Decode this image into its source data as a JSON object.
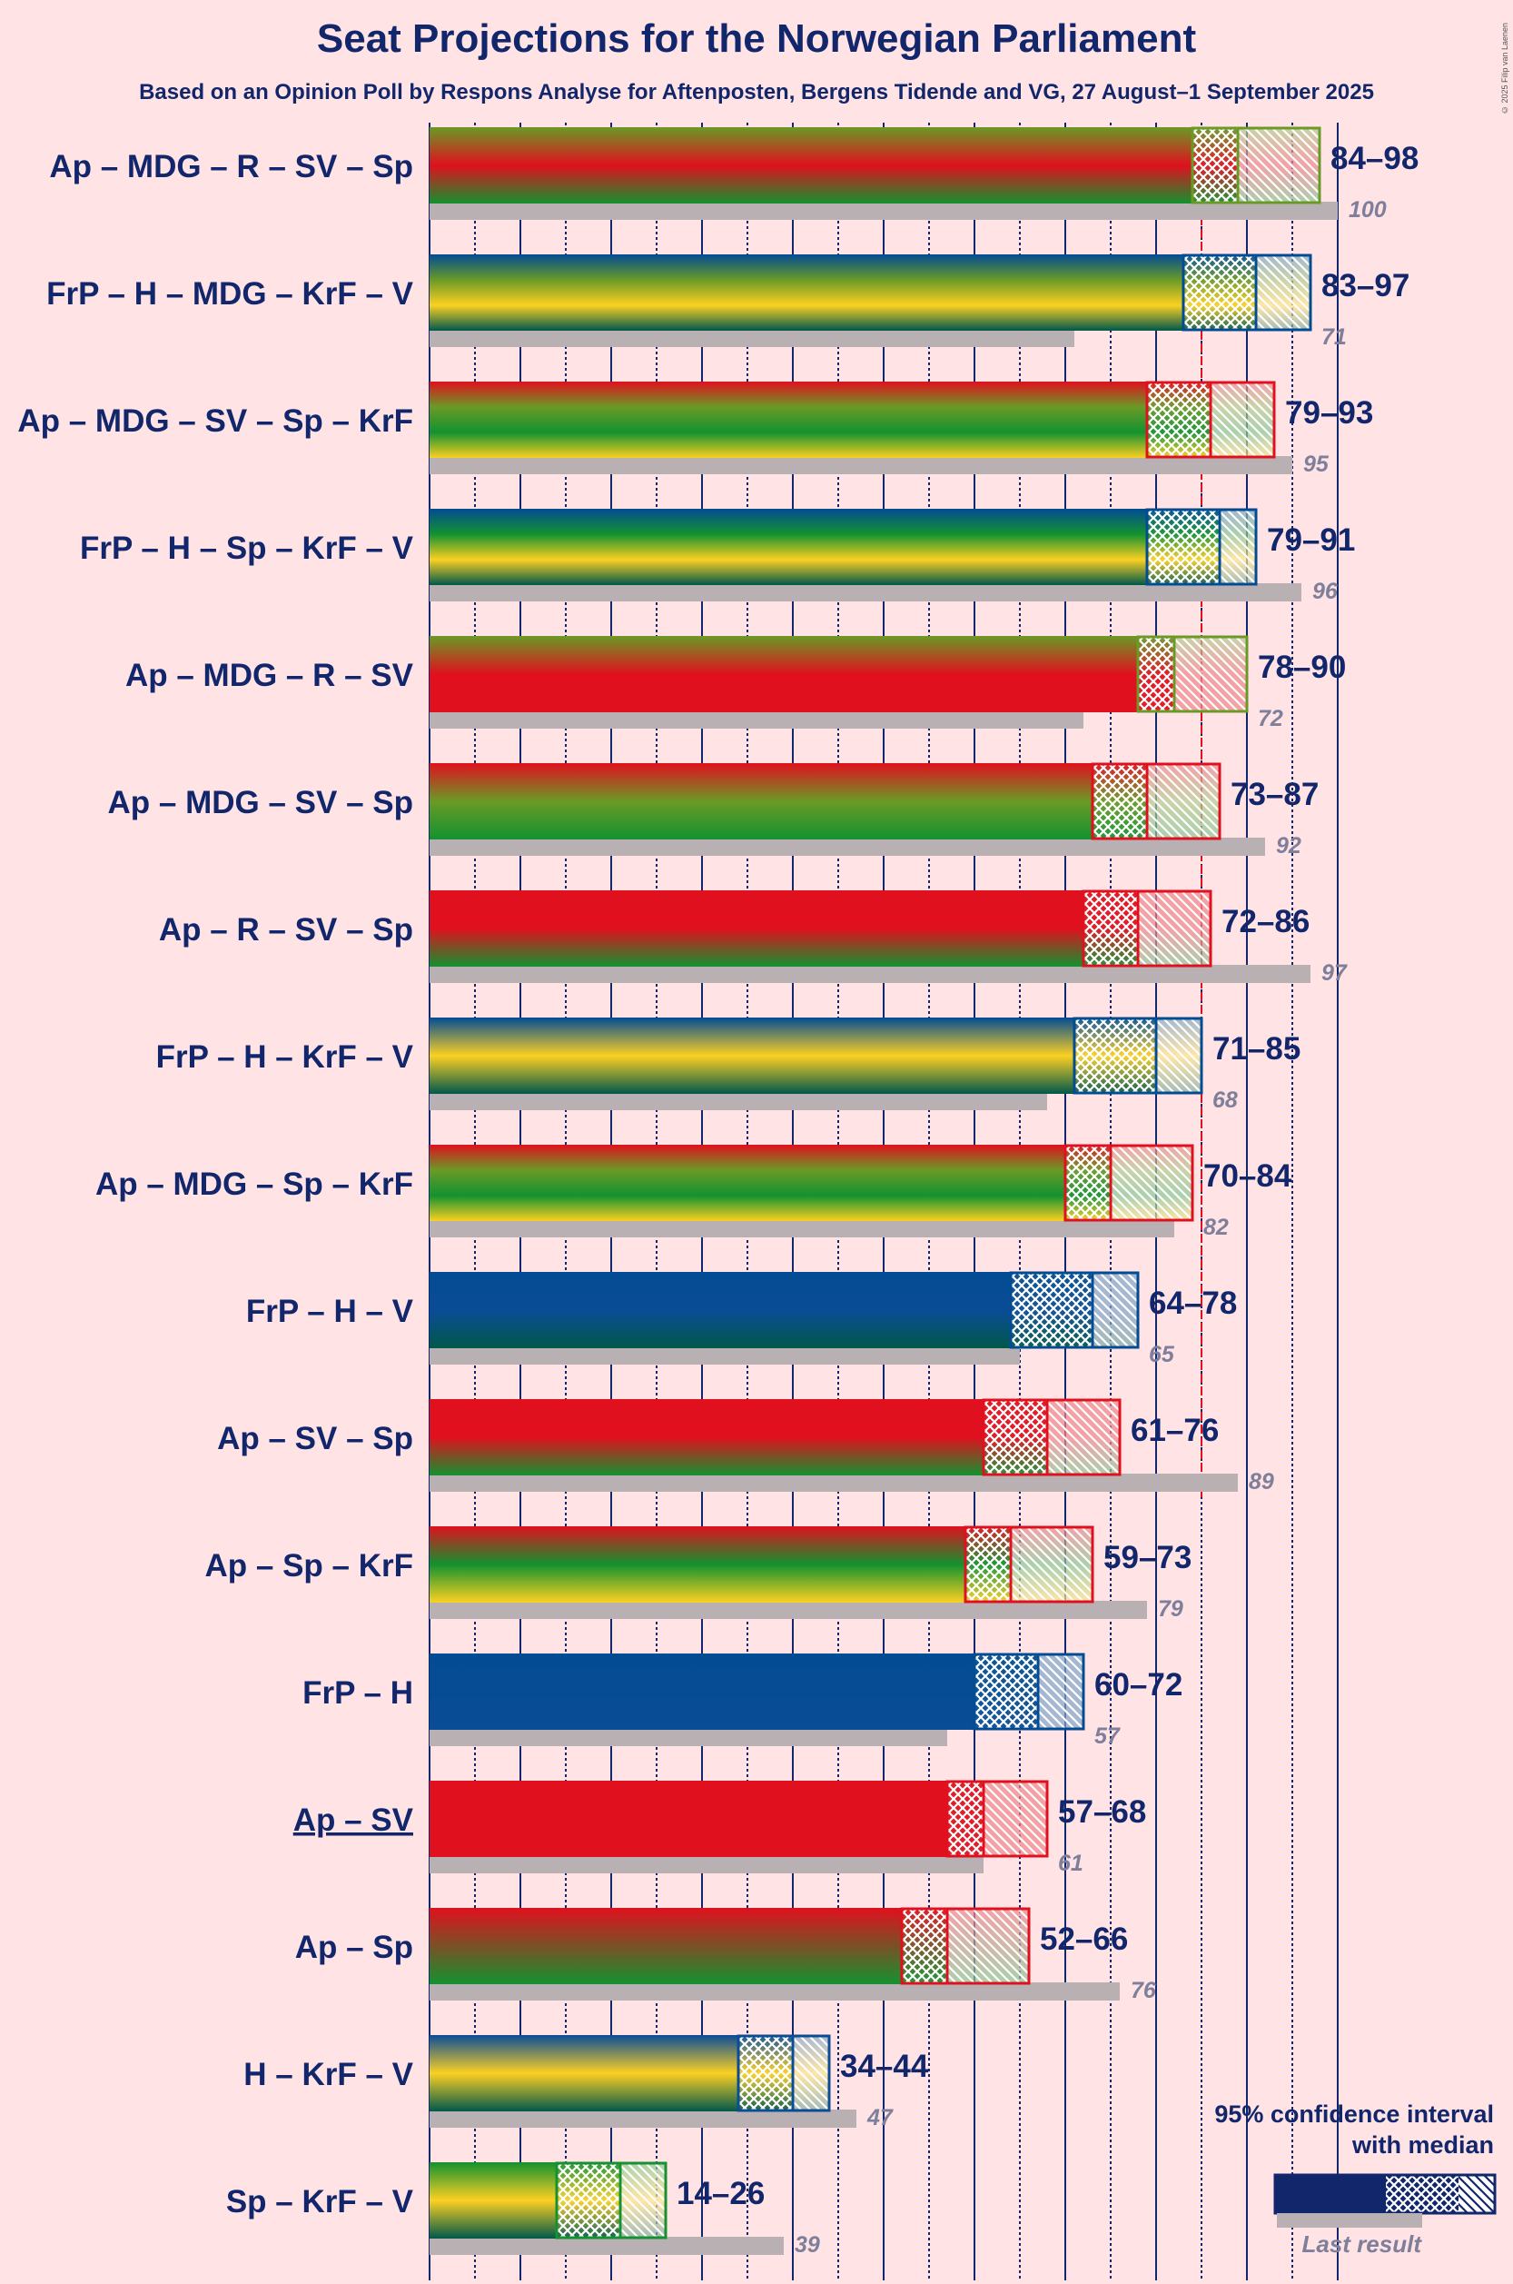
{
  "title": "Seat Projections for the Norwegian Parliament",
  "subtitle": "Based on an Opinion Poll by Respons Analyse for Aftenposten, Bergens Tidende and VG, 27 August–1 September 2025",
  "copyright": "© 2025 Filip van Laenen",
  "colors": {
    "background": "#ffe3e5",
    "text": "#12276b",
    "last_result_bar": "#b8b0b3",
    "last_result_text": "#7e7f9a",
    "majority_line": "#e0101e",
    "parties": {
      "Ap": "#e0101e",
      "MDG": "#6a9a26",
      "R": "#d01020",
      "SV": "#e0101e",
      "Sp": "#13922f",
      "KrF": "#fcd022",
      "FrP": "#024c93",
      "H": "#0a4c96",
      "V": "#00584a"
    }
  },
  "legend": {
    "title_line1": "95% confidence interval",
    "title_line2": "with median",
    "last_result": "Last result"
  },
  "chart_data": {
    "type": "bar",
    "orientation": "horizontal",
    "title": "Seat Projections for the Norwegian Parliament",
    "xlim": [
      0,
      100
    ],
    "majority": 85,
    "gridlines_every": 5,
    "rows": [
      {
        "label": "Ap – MDG – R – SV – Sp",
        "parties": [
          "MDG",
          "Ap",
          "Sp"
        ],
        "low": 84,
        "median": 89,
        "high": 98,
        "range_text": "84–98",
        "last": 100,
        "last_text": "100",
        "underline": false
      },
      {
        "label": "FrP – H – MDG – KrF – V",
        "parties": [
          "FrP",
          "MDG",
          "KrF",
          "V"
        ],
        "low": 83,
        "median": 91,
        "high": 97,
        "range_text": "83–97",
        "last": 71,
        "last_text": "71",
        "underline": false
      },
      {
        "label": "Ap – MDG – SV – Sp – KrF",
        "parties": [
          "Ap",
          "MDG",
          "Sp",
          "KrF"
        ],
        "low": 79,
        "median": 86,
        "high": 93,
        "range_text": "79–93",
        "last": 95,
        "last_text": "95",
        "underline": false
      },
      {
        "label": "FrP – H – Sp – KrF – V",
        "parties": [
          "FrP",
          "Sp",
          "KrF",
          "V"
        ],
        "low": 79,
        "median": 87,
        "high": 91,
        "range_text": "79–91",
        "last": 96,
        "last_text": "96",
        "underline": false
      },
      {
        "label": "Ap – MDG – R – SV",
        "parties": [
          "MDG",
          "Ap",
          "Ap"
        ],
        "low": 78,
        "median": 82,
        "high": 90,
        "range_text": "78–90",
        "last": 72,
        "last_text": "72",
        "underline": false
      },
      {
        "label": "Ap – MDG – SV – Sp",
        "parties": [
          "Ap",
          "MDG",
          "Sp"
        ],
        "low": 73,
        "median": 79,
        "high": 87,
        "range_text": "73–87",
        "last": 92,
        "last_text": "92",
        "underline": false
      },
      {
        "label": "Ap – R – SV – Sp",
        "parties": [
          "Ap",
          "Ap",
          "Sp"
        ],
        "low": 72,
        "median": 78,
        "high": 86,
        "range_text": "72–86",
        "last": 97,
        "last_text": "97",
        "underline": false
      },
      {
        "label": "FrP – H – KrF – V",
        "parties": [
          "FrP",
          "KrF",
          "V"
        ],
        "low": 71,
        "median": 80,
        "high": 85,
        "range_text": "71–85",
        "last": 68,
        "last_text": "68",
        "underline": false
      },
      {
        "label": "Ap – MDG – Sp – KrF",
        "parties": [
          "Ap",
          "MDG",
          "Sp",
          "KrF"
        ],
        "low": 70,
        "median": 75,
        "high": 84,
        "range_text": "70–84",
        "last": 82,
        "last_text": "82",
        "underline": false
      },
      {
        "label": "FrP – H – V",
        "parties": [
          "FrP",
          "H",
          "V"
        ],
        "low": 64,
        "median": 73,
        "high": 78,
        "range_text": "64–78",
        "last": 65,
        "last_text": "65",
        "underline": false
      },
      {
        "label": "Ap – SV – Sp",
        "parties": [
          "Ap",
          "Ap",
          "Sp"
        ],
        "low": 61,
        "median": 68,
        "high": 76,
        "range_text": "61–76",
        "last": 89,
        "last_text": "89",
        "underline": false
      },
      {
        "label": "Ap – Sp – KrF",
        "parties": [
          "Ap",
          "Sp",
          "KrF"
        ],
        "low": 59,
        "median": 64,
        "high": 73,
        "range_text": "59–73",
        "last": 79,
        "last_text": "79",
        "underline": false
      },
      {
        "label": "FrP – H",
        "parties": [
          "FrP",
          "H"
        ],
        "low": 60,
        "median": 67,
        "high": 72,
        "range_text": "60–72",
        "last": 57,
        "last_text": "57",
        "underline": false
      },
      {
        "label": "Ap – SV",
        "parties": [
          "Ap",
          "Ap"
        ],
        "low": 57,
        "median": 61,
        "high": 68,
        "range_text": "57–68",
        "last": 61,
        "last_text": "61",
        "underline": true
      },
      {
        "label": "Ap – Sp",
        "parties": [
          "Ap",
          "Sp"
        ],
        "low": 52,
        "median": 57,
        "high": 66,
        "range_text": "52–66",
        "last": 76,
        "last_text": "76",
        "underline": false
      },
      {
        "label": "H – KrF – V",
        "parties": [
          "H",
          "KrF",
          "V"
        ],
        "low": 34,
        "median": 40,
        "high": 44,
        "range_text": "34–44",
        "last": 47,
        "last_text": "47",
        "underline": false
      },
      {
        "label": "Sp – KrF – V",
        "parties": [
          "Sp",
          "KrF",
          "V"
        ],
        "low": 14,
        "median": 21,
        "high": 26,
        "range_text": "14–26",
        "last": 39,
        "last_text": "39",
        "underline": false
      }
    ]
  }
}
